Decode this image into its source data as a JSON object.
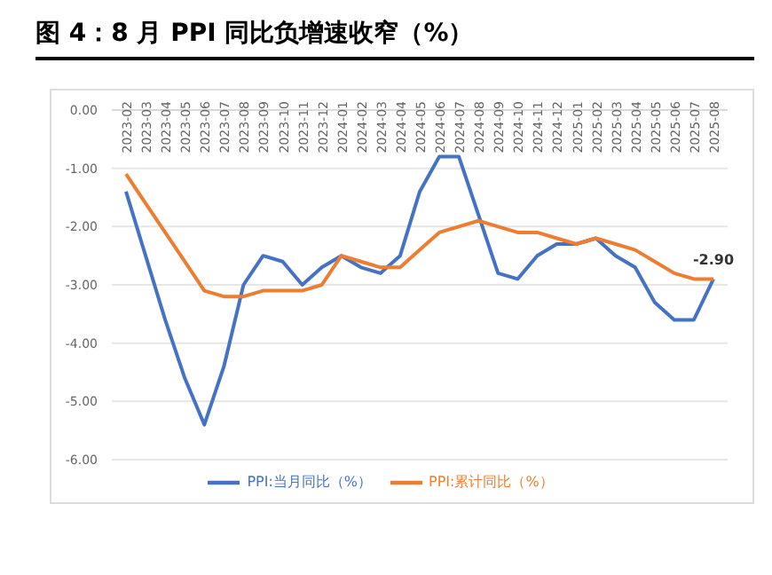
{
  "chart_data": {
    "type": "line",
    "title": "图 4：8 月 PPI 同比负增速收窄（%）",
    "categories": [
      "2023-02",
      "2023-03",
      "2023-04",
      "2023-05",
      "2023-06",
      "2023-07",
      "2023-08",
      "2023-09",
      "2023-10",
      "2023-11",
      "2023-12",
      "2024-01",
      "2024-02",
      "2024-03",
      "2024-04",
      "2024-05",
      "2024-06",
      "2024-07",
      "2024-08",
      "2024-09",
      "2024-10",
      "2024-11",
      "2024-12",
      "2025-01",
      "2025-02",
      "2025-03",
      "2025-04",
      "2025-05",
      "2025-06",
      "2025-07",
      "2025-08"
    ],
    "series": [
      {
        "name": "PPI:当月同比（%）",
        "color": "#4472c4",
        "values": [
          -1.4,
          -2.5,
          -3.6,
          -4.6,
          -5.4,
          -4.4,
          -3.0,
          -2.5,
          -2.6,
          -3.0,
          -2.7,
          -2.5,
          -2.7,
          -2.8,
          -2.5,
          -1.4,
          -0.8,
          -0.8,
          -1.8,
          -2.8,
          -2.9,
          -2.5,
          -2.3,
          -2.3,
          -2.2,
          -2.5,
          -2.7,
          -3.3,
          -3.6,
          -3.6,
          -2.9
        ],
        "value_labels": [
          null,
          null,
          null,
          null,
          null,
          null,
          null,
          null,
          null,
          null,
          null,
          null,
          null,
          null,
          null,
          null,
          null,
          null,
          null,
          null,
          null,
          null,
          null,
          null,
          null,
          null,
          null,
          null,
          null,
          null,
          "-2.90"
        ]
      },
      {
        "name": "PPI:累计同比（%）",
        "color": "#ed7d31",
        "values": [
          -1.1,
          -1.6,
          -2.1,
          -2.6,
          -3.1,
          -3.2,
          -3.2,
          -3.1,
          -3.1,
          -3.1,
          -3.0,
          -2.5,
          -2.6,
          -2.7,
          -2.7,
          -2.4,
          -2.1,
          -2.0,
          -1.9,
          -2.0,
          -2.1,
          -2.1,
          -2.2,
          -2.3,
          -2.2,
          -2.3,
          -2.4,
          -2.6,
          -2.8,
          -2.9,
          -2.9
        ]
      }
    ],
    "ylim": [
      -6,
      0
    ],
    "yticks": [
      {
        "value": 0,
        "label": "0.00"
      },
      {
        "value": -1,
        "label": "-1.00"
      },
      {
        "value": -2,
        "label": "-2.00"
      },
      {
        "value": -3,
        "label": "-3.00"
      },
      {
        "value": -4,
        "label": "-4.00"
      },
      {
        "value": -5,
        "label": "-5.00"
      },
      {
        "value": -6,
        "label": "-6.00"
      }
    ],
    "grid": "y",
    "legend": "bottom",
    "marker": "none",
    "line_style": "solid"
  }
}
